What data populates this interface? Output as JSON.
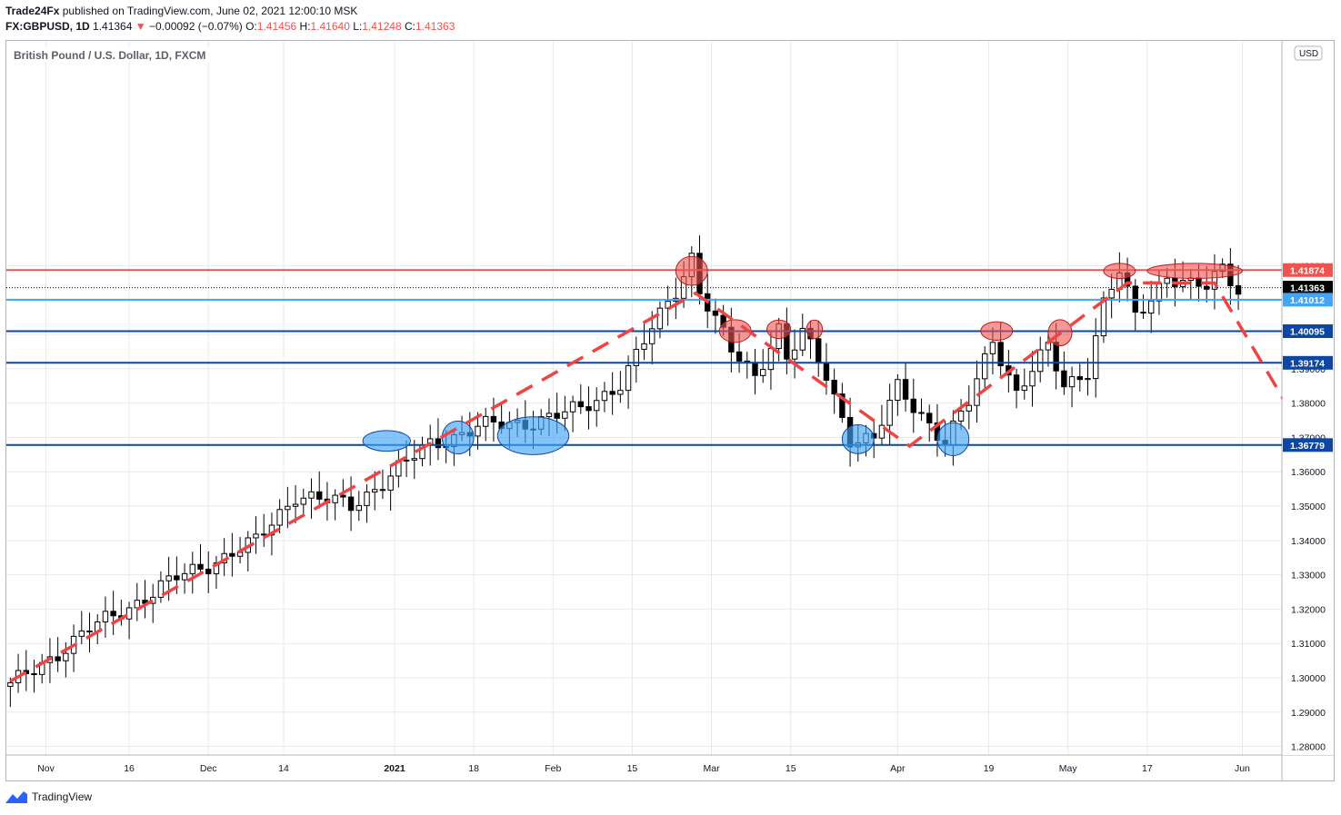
{
  "header": {
    "publisher": "Trade24Fx",
    "published_text": "published on TradingView.com, June 02, 2021 12:00:10 MSK",
    "symbol": "FX:GBPUSD, 1D",
    "last": "1.41364",
    "arrow": "▼",
    "change": "−0.00092 (−0.07%)",
    "o_label": "O:",
    "o_value": "1.41456",
    "h_label": "H:",
    "h_value": "1.41640",
    "l_label": "L:",
    "l_value": "1.41248",
    "c_label": "C:",
    "c_value": "1.41363"
  },
  "footer": {
    "brand": "TradingView"
  },
  "chart_data": {
    "type": "candlestick",
    "title": "British Pound / U.S. Dollar, 1D, FXCM",
    "currency_label": "USD",
    "y_range": [
      1.2775,
      1.4855
    ],
    "y_ticks": [
      1.28,
      1.29,
      1.3,
      1.31,
      1.32,
      1.33,
      1.34,
      1.35,
      1.36,
      1.37,
      1.38,
      1.39,
      1.4,
      1.41,
      1.42
    ],
    "y_tick_labels": [
      "1.28000",
      "1.29000",
      "1.30000",
      "1.31000",
      "1.32000",
      "1.33000",
      "1.34000",
      "1.35000",
      "1.36000",
      "1.37000",
      "1.38000",
      "1.39000",
      "1.40000",
      "1.41000",
      "1.42000"
    ],
    "x_labels": [
      {
        "label": "Nov",
        "index": 4.5
      },
      {
        "label": "16",
        "index": 15
      },
      {
        "label": "Dec",
        "index": 25
      },
      {
        "label": "14",
        "index": 34.5
      },
      {
        "label": "2021",
        "index": 48.5,
        "bold": true
      },
      {
        "label": "18",
        "index": 58.5
      },
      {
        "label": "Feb",
        "index": 68.5
      },
      {
        "label": "15",
        "index": 78.5
      },
      {
        "label": "Mar",
        "index": 88.5
      },
      {
        "label": "15",
        "index": 98.5
      },
      {
        "label": "Apr",
        "index": 112
      },
      {
        "label": "19",
        "index": 123.5
      },
      {
        "label": "May",
        "index": 133.5
      },
      {
        "label": "17",
        "index": 143.5
      },
      {
        "label": "Jun",
        "index": 155.5
      }
    ],
    "x_index_range": [
      -0.5,
      160.5
    ],
    "grid": true,
    "horizontal_levels": [
      {
        "value": 1.41874,
        "label": "1.41874",
        "color": "#ef5350",
        "width": 2
      },
      {
        "value": 1.41363,
        "label": "1.41363",
        "color": "#000000",
        "width": 1,
        "style": "dotted"
      },
      {
        "value": 1.41012,
        "label": "1.41012",
        "color": "#42a5f5",
        "width": 2
      },
      {
        "value": 1.40095,
        "label": "1.40095",
        "color": "#0d47a1",
        "width": 2
      },
      {
        "value": 1.39174,
        "label": "1.39174",
        "color": "#0d47a1",
        "width": 2
      },
      {
        "value": 1.36779,
        "label": "1.36779",
        "color": "#0d47a1",
        "width": 2
      }
    ],
    "key_points": [
      {
        "index": 0,
        "value": 1.2975
      },
      {
        "index": 10,
        "value": 1.314
      },
      {
        "index": 21,
        "value": 1.329
      },
      {
        "index": 31,
        "value": 1.3395
      },
      {
        "index": 36,
        "value": 1.3535
      },
      {
        "index": 43,
        "value": 1.35
      },
      {
        "index": 53,
        "value": 1.368
      },
      {
        "index": 59,
        "value": 1.373
      },
      {
        "index": 64,
        "value": 1.374
      },
      {
        "index": 72,
        "value": 1.378
      },
      {
        "index": 77,
        "value": 1.386
      },
      {
        "index": 84,
        "value": 1.413
      },
      {
        "index": 85,
        "value": 1.418
      },
      {
        "index": 86,
        "value": 1.423
      },
      {
        "index": 87,
        "value": 1.413
      },
      {
        "index": 91,
        "value": 1.395
      },
      {
        "index": 94,
        "value": 1.388
      },
      {
        "index": 97,
        "value": 1.402
      },
      {
        "index": 98,
        "value": 1.393
      },
      {
        "index": 100,
        "value": 1.4
      },
      {
        "index": 103,
        "value": 1.388
      },
      {
        "index": 106,
        "value": 1.37
      },
      {
        "index": 109,
        "value": 1.369
      },
      {
        "index": 112,
        "value": 1.3845
      },
      {
        "index": 115,
        "value": 1.377
      },
      {
        "index": 118,
        "value": 1.3685
      },
      {
        "index": 121,
        "value": 1.38
      },
      {
        "index": 124,
        "value": 1.399
      },
      {
        "index": 127,
        "value": 1.383
      },
      {
        "index": 131,
        "value": 1.396
      },
      {
        "index": 133,
        "value": 1.385
      },
      {
        "index": 136,
        "value": 1.39
      },
      {
        "index": 138,
        "value": 1.409
      },
      {
        "index": 140,
        "value": 1.418
      },
      {
        "index": 142,
        "value": 1.405
      },
      {
        "index": 144,
        "value": 1.411
      },
      {
        "index": 146,
        "value": 1.4175
      },
      {
        "index": 149,
        "value": 1.414
      },
      {
        "index": 151,
        "value": 1.4135
      },
      {
        "index": 153,
        "value": 1.4195
      },
      {
        "index": 155,
        "value": 1.4136
      }
    ],
    "projection": [
      {
        "index": 0,
        "value": 1.299
      },
      {
        "index": 86.5,
        "value": 1.412
      },
      {
        "index": 113.5,
        "value": 1.3675
      },
      {
        "index": 141,
        "value": 1.415
      },
      {
        "index": 152,
        "value": 1.415
      },
      {
        "index": 161,
        "value": 1.38
      }
    ],
    "resistance_markers": [
      {
        "index": 86,
        "value": 1.4185,
        "rx": 2.0,
        "ry": 0.0042
      },
      {
        "index": 91.5,
        "value": 1.401,
        "rx": 2.0,
        "ry": 0.0033
      },
      {
        "index": 97,
        "value": 1.4015,
        "rx": 1.5,
        "ry": 0.0027
      },
      {
        "index": 101.5,
        "value": 1.4015,
        "rx": 1.0,
        "ry": 0.0027
      },
      {
        "index": 124.5,
        "value": 1.401,
        "rx": 2.0,
        "ry": 0.0027
      },
      {
        "index": 132.5,
        "value": 1.4005,
        "rx": 1.5,
        "ry": 0.0038
      },
      {
        "index": 140,
        "value": 1.4185,
        "rx": 2.0,
        "ry": 0.0022
      },
      {
        "index": 149.5,
        "value": 1.4185,
        "rx": 6.0,
        "ry": 0.0022
      }
    ],
    "support_markers": [
      {
        "index": 47.5,
        "value": 1.369,
        "rx": 3.0,
        "ry": 0.003
      },
      {
        "index": 56.5,
        "value": 1.37,
        "rx": 2.0,
        "ry": 0.0048
      },
      {
        "index": 66,
        "value": 1.3705,
        "rx": 4.5,
        "ry": 0.0055
      },
      {
        "index": 107,
        "value": 1.3695,
        "rx": 2.0,
        "ry": 0.0042
      },
      {
        "index": 119,
        "value": 1.3695,
        "rx": 2.0,
        "ry": 0.0048
      }
    ]
  }
}
